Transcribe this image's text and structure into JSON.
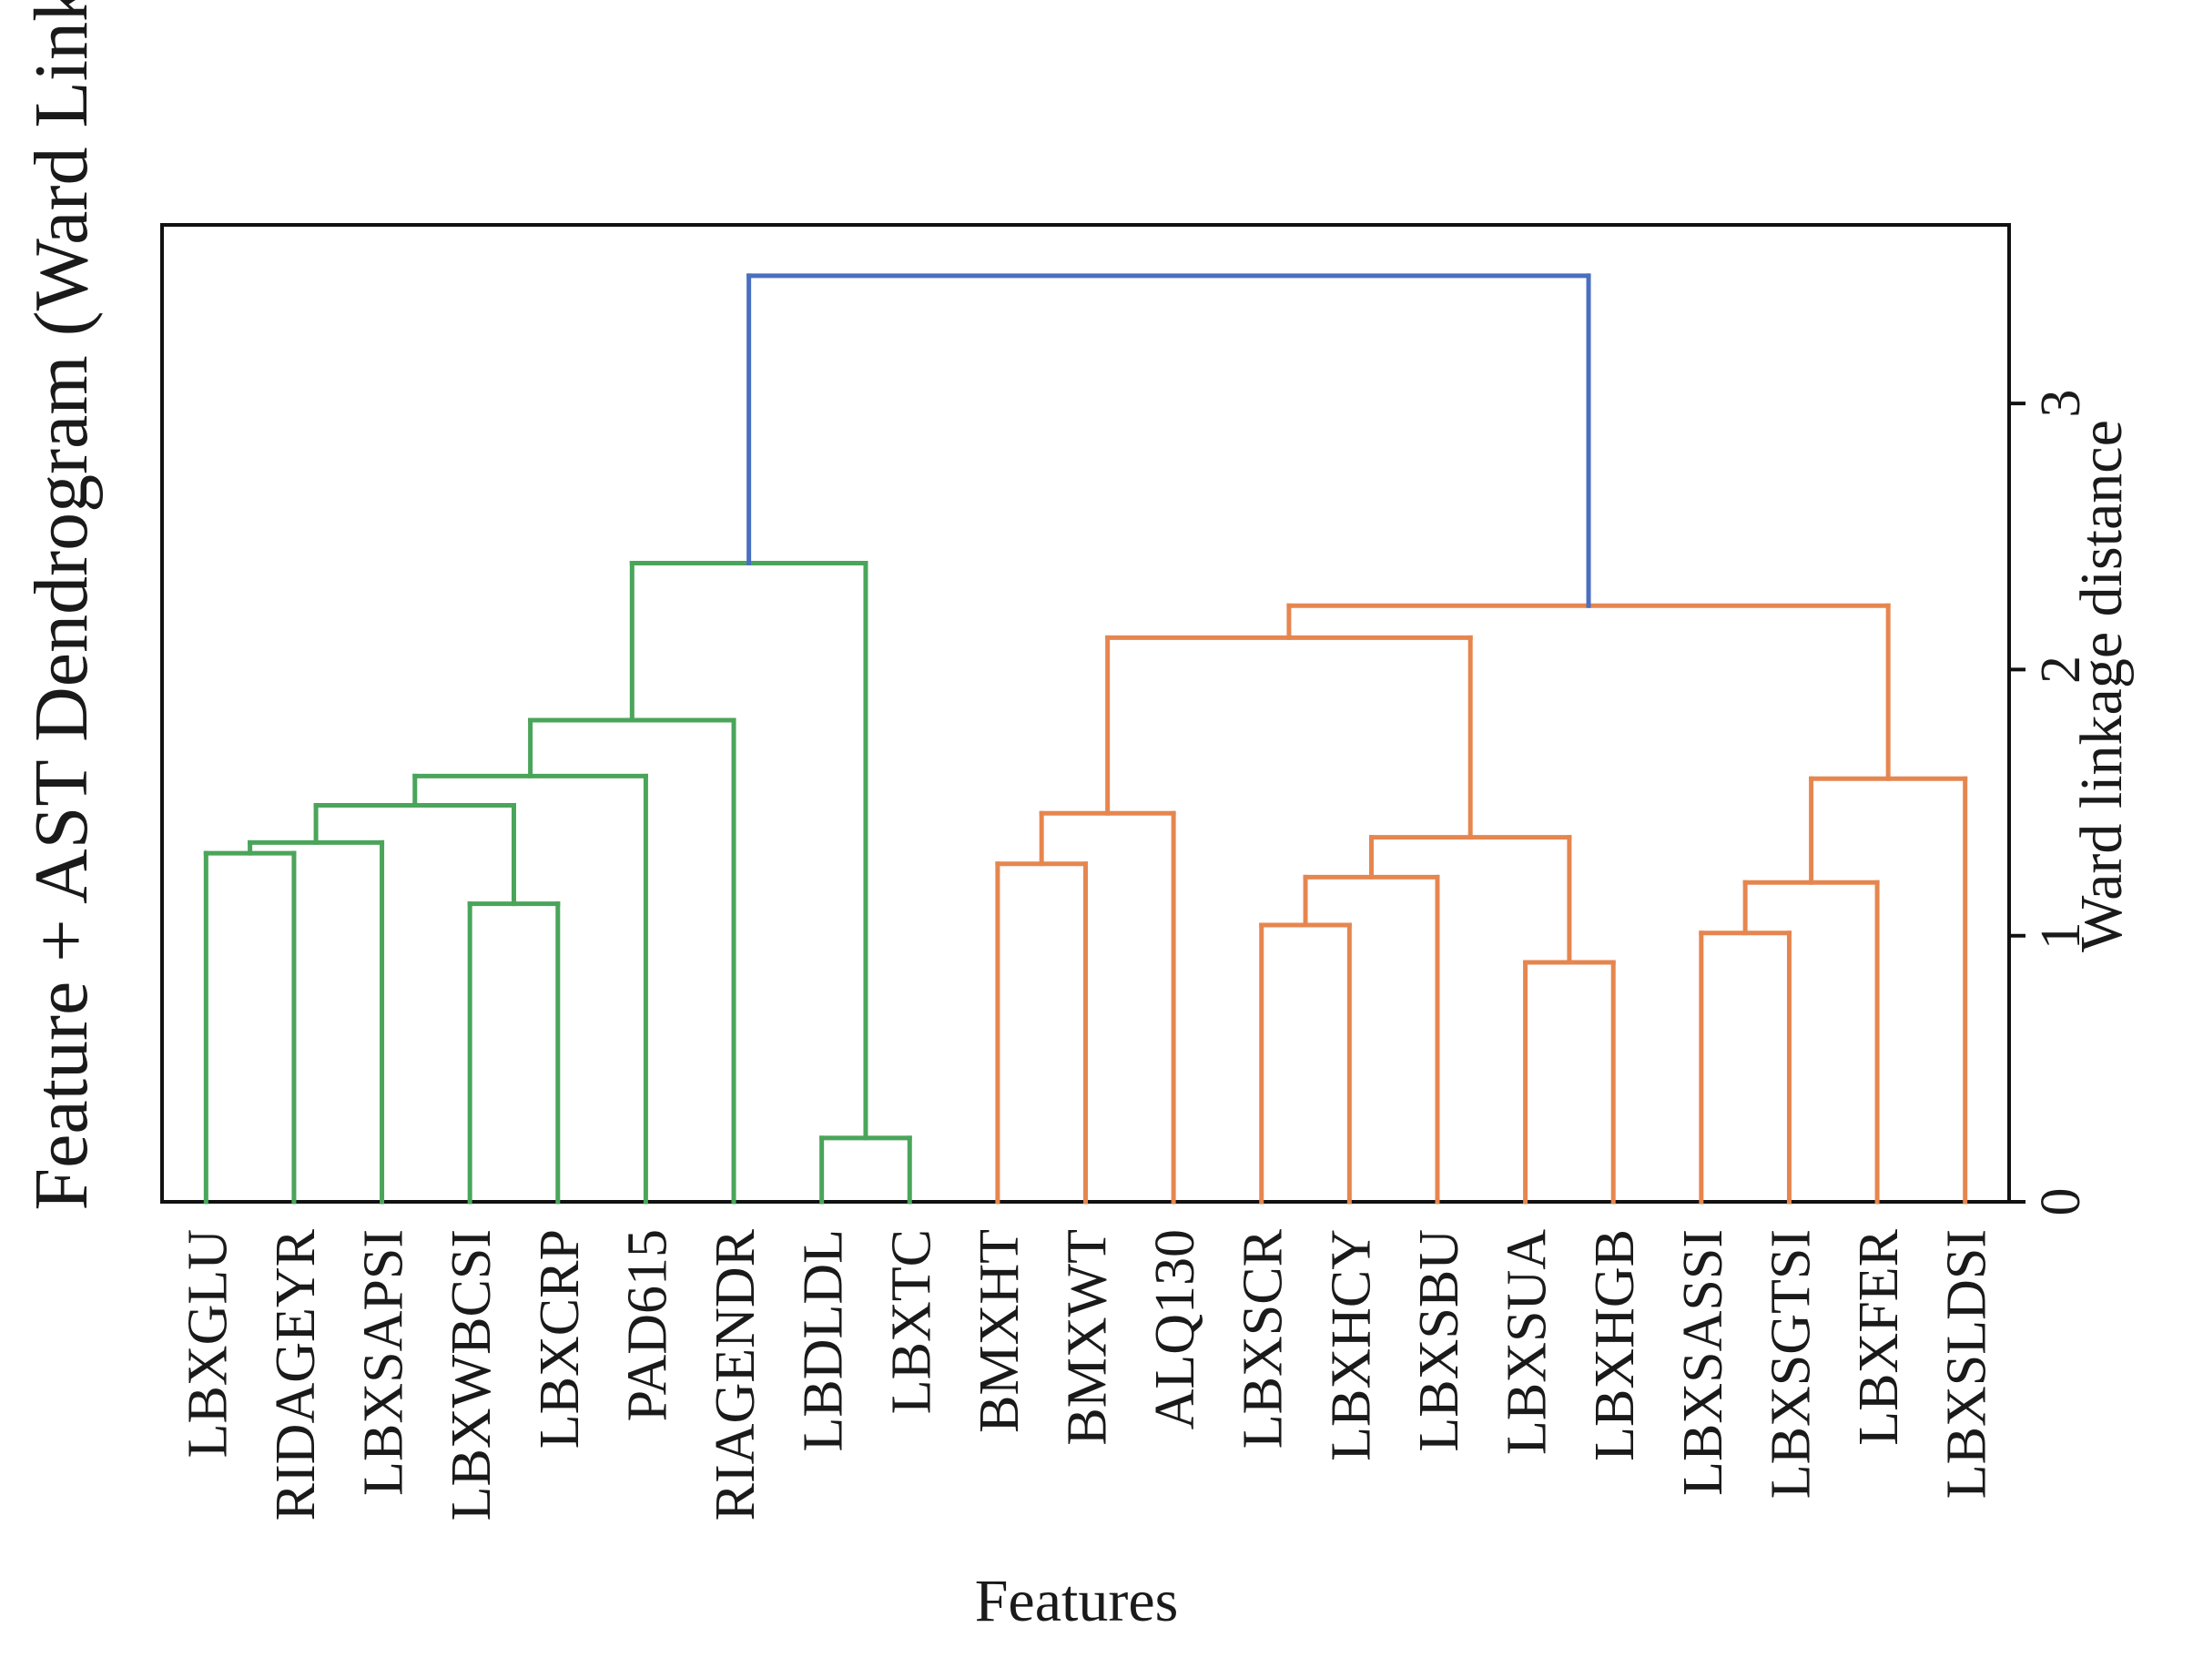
{
  "chart_data": {
    "type": "dendrogram",
    "title": "Feature + AST Dendrogram (Ward Linkage)",
    "xlabel": "Features",
    "ylabel": "Ward linkage distance",
    "ylim": [
      0,
      3.5
    ],
    "yticks": [
      "0",
      "1",
      "2",
      "3"
    ],
    "leaves": [
      "LBXGLU",
      "RIDAGEYR",
      "LBXSAPSI",
      "LBXWBCSI",
      "LBXCRP",
      "PAD615",
      "RIAGENDR",
      "LBDLDL",
      "LBXTC",
      "BMXHT",
      "BMXWT",
      "ALQ130",
      "LBXSCR",
      "LBXHCY",
      "LBXSBU",
      "LBXSUA",
      "LBXHGB",
      "LBXSASSI",
      "LBXSGTSI",
      "LBXFER",
      "LBXSLDSI"
    ],
    "colors": {
      "green": "#4aa55a",
      "orange": "#e6864f",
      "blue": "#4a6fc0"
    },
    "merges": [
      {
        "left": "L0",
        "right": "L1",
        "height": 1.31,
        "color": "green"
      },
      {
        "left": "M0",
        "right": "L2",
        "height": 1.35,
        "color": "green"
      },
      {
        "left": "L3",
        "right": "L4",
        "height": 1.12,
        "color": "green"
      },
      {
        "left": "M1",
        "right": "M2",
        "height": 1.49,
        "color": "green"
      },
      {
        "left": "M3",
        "right": "L5",
        "height": 1.6,
        "color": "green"
      },
      {
        "left": "M4",
        "right": "L6",
        "height": 1.81,
        "color": "green"
      },
      {
        "left": "L7",
        "right": "L8",
        "height": 0.24,
        "color": "green"
      },
      {
        "left": "M5",
        "right": "M6",
        "height": 2.4,
        "color": "green"
      },
      {
        "left": "L9",
        "right": "L10",
        "height": 1.27,
        "color": "orange"
      },
      {
        "left": "M8",
        "right": "L11",
        "height": 1.46,
        "color": "orange"
      },
      {
        "left": "L12",
        "right": "L13",
        "height": 1.04,
        "color": "orange"
      },
      {
        "left": "M10",
        "right": "L14",
        "height": 1.22,
        "color": "orange"
      },
      {
        "left": "L15",
        "right": "L16",
        "height": 0.9,
        "color": "orange"
      },
      {
        "left": "M11",
        "right": "M12",
        "height": 1.37,
        "color": "orange"
      },
      {
        "left": "M9",
        "right": "M13",
        "height": 2.12,
        "color": "orange"
      },
      {
        "left": "L17",
        "right": "L18",
        "height": 1.01,
        "color": "orange"
      },
      {
        "left": "M15",
        "right": "L19",
        "height": 1.2,
        "color": "orange"
      },
      {
        "left": "M16",
        "right": "L20",
        "height": 1.59,
        "color": "orange"
      },
      {
        "left": "M14",
        "right": "M17",
        "height": 2.24,
        "color": "orange"
      },
      {
        "left": "M7",
        "right": "M18",
        "height": 3.48,
        "color": "blue"
      }
    ]
  }
}
